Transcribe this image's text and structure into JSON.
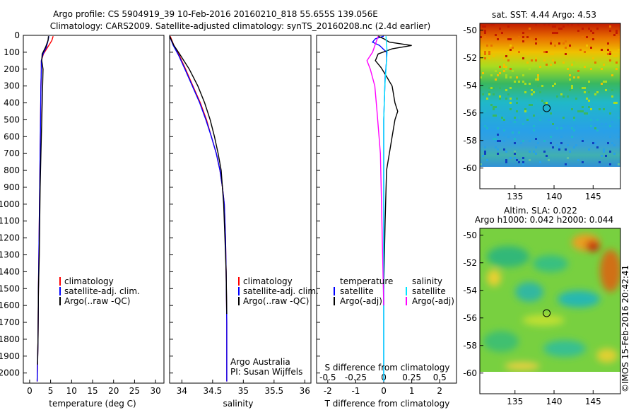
{
  "header": {
    "line1": "Argo profile: CS 5904919_39 10-Feb-2016 20160210_818 55.655S 139.056E",
    "line2": "Climatology: CARS2009. Satellite-adjusted climatology: synTS_20160208.nc (2.4d earlier)"
  },
  "credit": "©IMOS 15-Feb-2016 20:42:41",
  "notes": {
    "agency": "Argo Australia",
    "pi": "PI: Susan Wijffels"
  },
  "colors": {
    "climatology": "#ff0000",
    "satellite": "#0000ff",
    "argo": "#000000",
    "sal_satellite": "#00e5ff",
    "sal_argo": "#ff00ff"
  },
  "chart_data": [
    {
      "type": "line",
      "title": "",
      "xlabel": "temperature (deg C)",
      "ylabel": "",
      "xlim": [
        -1.5,
        32
      ],
      "ylim": [
        2060,
        0
      ],
      "x_ticks": [
        "0",
        "5",
        "10",
        "15",
        "20",
        "25",
        "30"
      ],
      "y_ticks": [
        "0",
        "100",
        "200",
        "300",
        "400",
        "500",
        "600",
        "700",
        "800",
        "900",
        "1000",
        "1100",
        "1200",
        "1300",
        "1400",
        "1500",
        "1600",
        "1700",
        "1800",
        "1900",
        "2000"
      ],
      "legend": [
        "climatology",
        "satellite-adj. clim.",
        "Argo(..raw -QC)"
      ],
      "series": [
        {
          "name": "climatology",
          "color": "#ff0000",
          "x": [
            5.6,
            5.3,
            4.3,
            3.3,
            2.8,
            2.8,
            2.7,
            2.6,
            2.5,
            2.4,
            2.3,
            2.2,
            2.1,
            2.0,
            1.8
          ],
          "y": [
            5,
            30,
            70,
            110,
            150,
            200,
            300,
            500,
            700,
            900,
            1100,
            1300,
            1500,
            1800,
            2050
          ]
        },
        {
          "name": "satellite-adj. clim.",
          "color": "#0000ff",
          "x": [
            4.6,
            4.4,
            4.0,
            3.2,
            2.8,
            2.8,
            2.7,
            2.6,
            2.5,
            2.4,
            2.3,
            2.2,
            2.1,
            2.0,
            1.8
          ],
          "y": [
            5,
            30,
            70,
            110,
            150,
            200,
            300,
            500,
            700,
            900,
            1100,
            1300,
            1500,
            1800,
            2050
          ]
        },
        {
          "name": "Argo(..raw -QC)",
          "color": "#000000",
          "x": [
            4.5,
            4.4,
            3.8,
            3.0,
            2.9,
            3.2,
            3.1,
            3.0,
            2.9,
            2.7,
            2.5,
            2.4,
            2.3,
            2.1,
            2.0,
            1.9
          ],
          "y": [
            5,
            30,
            70,
            110,
            150,
            200,
            300,
            400,
            500,
            700,
            900,
            1100,
            1300,
            1500,
            1800,
            1950
          ]
        }
      ]
    },
    {
      "type": "line",
      "title": "",
      "xlabel": "salinity",
      "ylabel": "",
      "xlim": [
        33.8,
        36.1
      ],
      "ylim": [
        2060,
        0
      ],
      "x_ticks": [
        "34",
        "34.5",
        "35",
        "35.5",
        "36"
      ],
      "legend": [
        "climatology",
        "satellite-adj. clim.",
        "Argo(..raw -QC)"
      ],
      "series": [
        {
          "name": "climatology",
          "color": "#ff0000",
          "x": [
            33.81,
            33.87,
            33.96,
            34.06,
            34.18,
            34.3,
            34.4,
            34.48,
            34.56,
            34.62,
            34.66,
            34.69,
            34.71,
            34.72,
            34.73,
            34.73
          ],
          "y": [
            5,
            60,
            120,
            200,
            300,
            400,
            500,
            600,
            700,
            800,
            900,
            1000,
            1200,
            1400,
            1700,
            2050
          ]
        },
        {
          "name": "satellite-adj. clim.",
          "color": "#0000ff",
          "x": [
            33.8,
            33.86,
            33.95,
            34.05,
            34.17,
            34.29,
            34.39,
            34.48,
            34.56,
            34.62,
            34.66,
            34.69,
            34.71,
            34.72,
            34.73,
            34.73
          ],
          "y": [
            5,
            60,
            120,
            200,
            300,
            400,
            500,
            600,
            700,
            800,
            900,
            1000,
            1200,
            1400,
            1700,
            2050
          ]
        },
        {
          "name": "Argo(..raw -QC)",
          "color": "#000000",
          "x": [
            33.8,
            33.87,
            33.98,
            34.12,
            34.26,
            34.37,
            34.46,
            34.53,
            34.59,
            34.64,
            34.68,
            34.7,
            34.72,
            34.73
          ],
          "y": [
            5,
            60,
            120,
            200,
            300,
            400,
            500,
            600,
            700,
            800,
            1000,
            1200,
            1400,
            1650
          ]
        }
      ]
    },
    {
      "type": "line",
      "title": "",
      "xlabel": "T difference from climatology",
      "xlabel2": "S difference from climatology",
      "ylabel": "",
      "xlim": [
        -2.4,
        2.6
      ],
      "x2lim": [
        -0.6,
        0.65
      ],
      "ylim": [
        2060,
        0
      ],
      "x_ticks": [
        "-2",
        "-1",
        "0",
        "1",
        "2"
      ],
      "x2_ticks": [
        "-0.5",
        "-0.25",
        "0",
        "0.25",
        "0.5"
      ],
      "legend_titles": [
        "temperature",
        "salinity"
      ],
      "legend": [
        "satellite",
        "Argo(-adj)",
        "satellite",
        "Argo(-adj)"
      ],
      "series": [
        {
          "name": "T satellite",
          "color": "#0000ff",
          "x": [
            0,
            -0.3,
            -0.4,
            -0.15,
            0.1,
            0.1,
            0.05,
            0,
            0,
            0
          ],
          "y": [
            5,
            20,
            40,
            60,
            100,
            150,
            250,
            500,
            1000,
            2050
          ]
        },
        {
          "name": "T Argo(-adj)",
          "color": "#000000",
          "x": [
            -0.2,
            0,
            0.2,
            1.0,
            0.3,
            -0.2,
            -0.3,
            -0.1,
            0.05,
            0.3,
            0.4,
            0.5,
            0.4,
            0.3,
            0.1,
            0.05,
            0
          ],
          "y": [
            5,
            20,
            40,
            60,
            80,
            110,
            150,
            190,
            230,
            300,
            400,
            450,
            500,
            600,
            800,
            1100,
            1500
          ]
        },
        {
          "name": "S satellite",
          "color": "#00e5ff",
          "x": [
            0.02,
            0.03,
            0.02,
            0.01,
            0,
            0,
            0
          ],
          "y": [
            5,
            100,
            200,
            300,
            500,
            1000,
            2050
          ]
        },
        {
          "name": "S Argo(-adj)",
          "color": "#ff00ff",
          "x": [
            -0.05,
            -0.1,
            -0.15,
            -0.12,
            -0.08,
            -0.06,
            -0.03,
            -0.02,
            0
          ],
          "y": [
            5,
            100,
            150,
            200,
            300,
            450,
            700,
            1000,
            1600
          ]
        }
      ]
    },
    {
      "type": "heatmap",
      "title": "sat. SST: 4.44 Argo: 4.53",
      "xlim": [
        130.5,
        148.5
      ],
      "ylim": [
        -61.5,
        -49.5
      ],
      "x_ticks": [
        "135",
        "140",
        "145"
      ],
      "y_ticks": [
        "-50",
        "-52",
        "-54",
        "-56",
        "-58",
        "-60"
      ],
      "marker": {
        "lon": 139.056,
        "lat": -55.655
      }
    },
    {
      "type": "heatmap",
      "title": "Altim. SLA: 0.022",
      "subtitle": "Argo h1000: 0.042 h2000: 0.044",
      "xlim": [
        130.5,
        148.5
      ],
      "ylim": [
        -61.5,
        -49.5
      ],
      "x_ticks": [
        "135",
        "140",
        "145"
      ],
      "y_ticks": [
        "-50",
        "-52",
        "-54",
        "-56",
        "-58",
        "-60"
      ],
      "marker": {
        "lon": 139.056,
        "lat": -55.655
      }
    }
  ]
}
